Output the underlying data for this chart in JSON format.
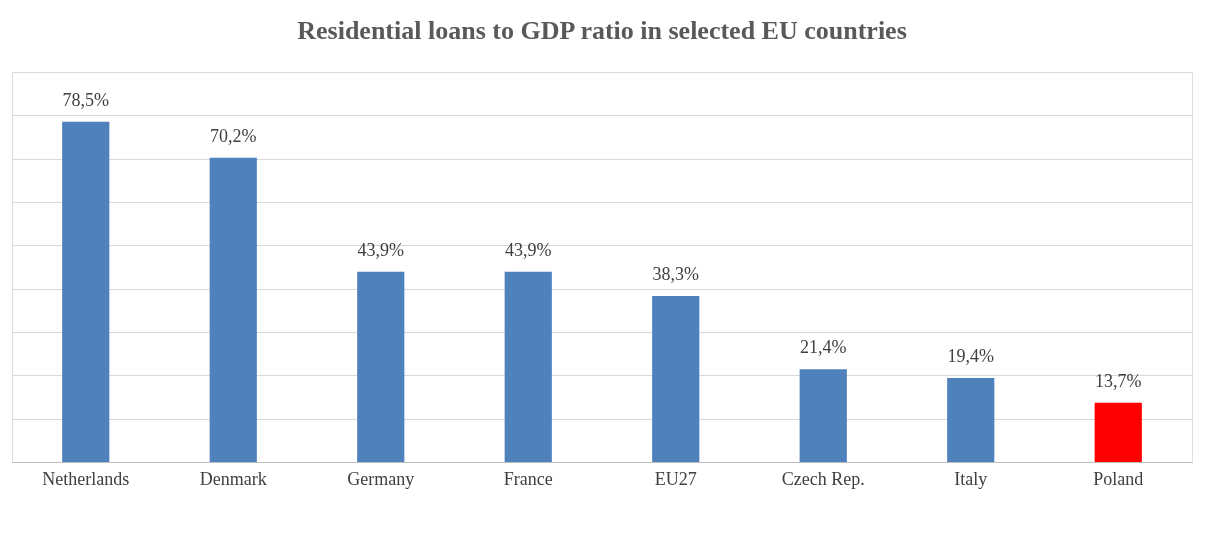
{
  "chart_data": {
    "type": "bar",
    "title": "Residential loans to GDP ratio in selected EU countries",
    "categories": [
      "Netherlands",
      "Denmark",
      "Germany",
      "France",
      "EU27",
      "Czech Rep.",
      "Italy",
      "Poland"
    ],
    "values": [
      78.5,
      70.2,
      43.9,
      43.9,
      38.3,
      21.4,
      19.4,
      13.7
    ],
    "value_labels": [
      "78,5%",
      "70,2%",
      "43,9%",
      "43,9%",
      "38,3%",
      "21,4%",
      "19,4%",
      "13,7%"
    ],
    "colors": [
      "#4f81bd",
      "#4f81bd",
      "#4f81bd",
      "#4f81bd",
      "#4f81bd",
      "#4f81bd",
      "#4f81bd",
      "#ff0000"
    ],
    "ylim": [
      0,
      90
    ],
    "yticks": [
      {
        "value": 0,
        "label": null
      },
      {
        "value": 10,
        "label": null
      },
      {
        "value": 20,
        "label": null
      },
      {
        "value": 30,
        "label": null
      },
      {
        "value": 40,
        "label": null
      },
      {
        "value": 50,
        "label": null
      },
      {
        "value": 60,
        "label": null
      },
      {
        "value": 70,
        "label": null
      },
      {
        "value": 80,
        "label": null
      },
      {
        "value": 90,
        "label": null
      }
    ],
    "grid": "y",
    "tick_labels": "x"
  }
}
